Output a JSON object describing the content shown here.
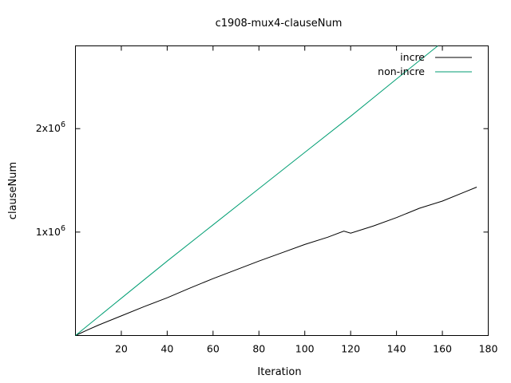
{
  "chart_data": {
    "type": "line",
    "title": "c1908-mux4-clauseNum",
    "xlabel": "Iteration",
    "ylabel": "clauseNum",
    "xlim": [
      0,
      180
    ],
    "ylim": [
      0,
      2800000
    ],
    "x_ticks": [
      20,
      40,
      60,
      80,
      100,
      120,
      140,
      160,
      180
    ],
    "y_ticks": [
      {
        "value": 1000000,
        "label": "1x10",
        "exp": "6"
      },
      {
        "value": 2000000,
        "label": "2x10",
        "exp": "6"
      }
    ],
    "legend_position": "top-right",
    "grid": false,
    "series": [
      {
        "name": "incre",
        "color": "#000000",
        "x": [
          0,
          5,
          10,
          20,
          30,
          40,
          50,
          60,
          70,
          80,
          90,
          100,
          110,
          117,
          120,
          130,
          140,
          150,
          160,
          170,
          175
        ],
        "y": [
          0,
          52000,
          100000,
          190000,
          280000,
          365000,
          460000,
          550000,
          635000,
          720000,
          800000,
          880000,
          950000,
          1010000,
          990000,
          1060000,
          1140000,
          1230000,
          1300000,
          1390000,
          1435000
        ]
      },
      {
        "name": "non-incre",
        "color": "#009e73",
        "x": [
          0,
          20,
          40,
          60,
          80,
          100,
          120,
          140,
          158
        ],
        "y": [
          0,
          360000,
          720000,
          1070000,
          1420000,
          1770000,
          2120000,
          2480000,
          2800000
        ]
      }
    ]
  }
}
